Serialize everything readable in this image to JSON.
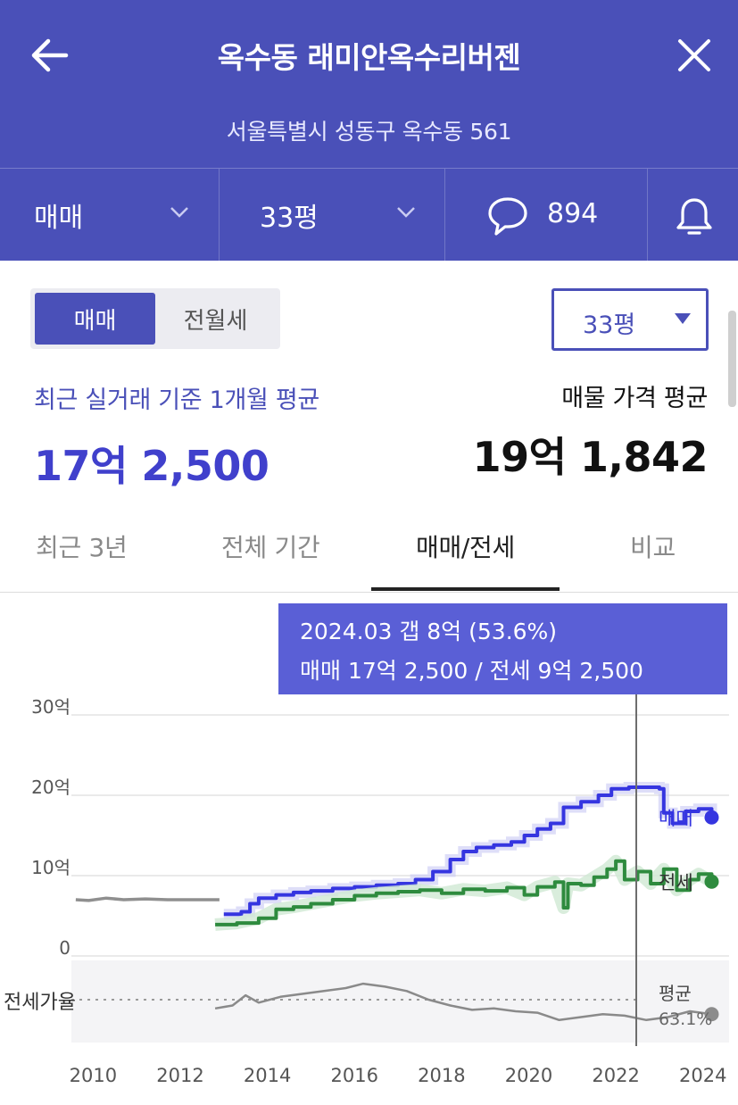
{
  "header": {
    "title": "옥수동 래미안옥수리버젠",
    "address": "서울특별시 성동구 옥수동 561",
    "filters": {
      "trade_type": "매매",
      "size": "33평",
      "comment_count": "894"
    }
  },
  "summary": {
    "toggle": {
      "active": "매매",
      "inactive": "전월세"
    },
    "size_select": "33평",
    "recent_label": "최근 실거래 기준 1개월 평균",
    "recent_value": "17억 2,500",
    "listing_label": "매물 가격 평균",
    "listing_value": "19억 1,842"
  },
  "tabs": [
    "최근 3년",
    "전체 기간",
    "매매/전세",
    "비교"
  ],
  "active_tab": "매매/전세",
  "colors": {
    "header_bg": "#4a50b8",
    "sale": "#3535e0",
    "jeonse": "#2e8b3e",
    "ratio": "#8a8a8a",
    "tooltip_bg": "#5a5fd6"
  },
  "tooltip": {
    "line1": "2024.03  갭 8억 (53.6%)",
    "line2": "매매 17억 2,500 / 전세 9억 2,500"
  },
  "chart_data": {
    "type": "line",
    "x_ticks": [
      "2010",
      "2012",
      "2014",
      "2016",
      "2018",
      "2020",
      "2022",
      "2024"
    ],
    "y_ticks": [
      "0",
      "10억",
      "20억",
      "30억"
    ],
    "ylim": [
      0,
      30
    ],
    "xlim": [
      2009.5,
      2024.6
    ],
    "grid": true,
    "series": [
      {
        "name": "매매",
        "key": "sale",
        "points": [
          [
            2009.6,
            7.0
          ],
          [
            2009.9,
            6.9
          ],
          [
            2010.3,
            7.2
          ],
          [
            2010.7,
            7.0
          ],
          [
            2011.2,
            7.1
          ],
          [
            2011.7,
            7.0
          ],
          [
            2012.3,
            7.0
          ],
          [
            2012.9,
            7.0
          ],
          [
            2013.0,
            5.2
          ],
          [
            2013.4,
            5.5
          ],
          [
            2013.6,
            6.5
          ],
          [
            2013.8,
            7.2
          ],
          [
            2014.2,
            7.6
          ],
          [
            2014.6,
            7.9
          ],
          [
            2015.0,
            8.1
          ],
          [
            2015.5,
            8.4
          ],
          [
            2016.0,
            8.6
          ],
          [
            2016.5,
            8.8
          ],
          [
            2017.0,
            9.0
          ],
          [
            2017.4,
            9.5
          ],
          [
            2017.8,
            10.5
          ],
          [
            2018.2,
            12.0
          ],
          [
            2018.5,
            13.0
          ],
          [
            2018.8,
            13.5
          ],
          [
            2019.2,
            13.8
          ],
          [
            2019.6,
            14.2
          ],
          [
            2019.9,
            15.0
          ],
          [
            2020.2,
            15.8
          ],
          [
            2020.5,
            16.5
          ],
          [
            2020.8,
            18.5
          ],
          [
            2021.2,
            19.2
          ],
          [
            2021.6,
            20.0
          ],
          [
            2021.9,
            20.8
          ],
          [
            2022.3,
            21.0
          ],
          [
            2022.7,
            21.0
          ],
          [
            2023.0,
            20.8
          ],
          [
            2023.1,
            17.8
          ],
          [
            2023.3,
            16.5
          ],
          [
            2023.6,
            18.0
          ],
          [
            2023.9,
            18.3
          ],
          [
            2024.2,
            17.25
          ]
        ]
      },
      {
        "name": "전세",
        "key": "jeonse",
        "points": [
          [
            2012.8,
            3.9
          ],
          [
            2013.3,
            4.1
          ],
          [
            2013.8,
            4.7
          ],
          [
            2014.2,
            5.8
          ],
          [
            2014.6,
            6.1
          ],
          [
            2015.0,
            6.5
          ],
          [
            2015.5,
            7.0
          ],
          [
            2016.0,
            7.5
          ],
          [
            2016.5,
            7.8
          ],
          [
            2017.0,
            8.0
          ],
          [
            2017.5,
            8.2
          ],
          [
            2018.0,
            7.8
          ],
          [
            2018.5,
            8.3
          ],
          [
            2019.0,
            8.1
          ],
          [
            2019.5,
            8.5
          ],
          [
            2019.9,
            7.6
          ],
          [
            2020.2,
            8.6
          ],
          [
            2020.6,
            9.2
          ],
          [
            2020.8,
            6.0
          ],
          [
            2020.9,
            9.0
          ],
          [
            2021.2,
            8.8
          ],
          [
            2021.5,
            9.8
          ],
          [
            2021.8,
            10.8
          ],
          [
            2022.0,
            11.8
          ],
          [
            2022.2,
            9.5
          ],
          [
            2022.5,
            10.5
          ],
          [
            2022.8,
            9.0
          ],
          [
            2023.1,
            10.8
          ],
          [
            2023.4,
            8.2
          ],
          [
            2023.7,
            9.5
          ],
          [
            2023.9,
            10.2
          ],
          [
            2024.2,
            9.25
          ]
        ]
      },
      {
        "name": "전세가율",
        "key": "ratio",
        "average_label": "평균",
        "average_value": "63.1%",
        "points": [
          [
            2012.8,
            58
          ],
          [
            2013.2,
            60
          ],
          [
            2013.5,
            67
          ],
          [
            2013.8,
            62
          ],
          [
            2014.3,
            66
          ],
          [
            2014.8,
            68
          ],
          [
            2015.3,
            70
          ],
          [
            2015.8,
            72
          ],
          [
            2016.2,
            75
          ],
          [
            2016.7,
            73
          ],
          [
            2017.2,
            70
          ],
          [
            2017.7,
            64
          ],
          [
            2018.2,
            60
          ],
          [
            2018.7,
            57
          ],
          [
            2019.2,
            58
          ],
          [
            2019.7,
            56
          ],
          [
            2020.2,
            55
          ],
          [
            2020.7,
            50
          ],
          [
            2021.2,
            52
          ],
          [
            2021.7,
            54
          ],
          [
            2022.2,
            53
          ],
          [
            2022.7,
            50
          ],
          [
            2023.2,
            52
          ],
          [
            2023.7,
            56
          ],
          [
            2024.2,
            54
          ]
        ]
      }
    ],
    "legend": {
      "sale": "매매",
      "jeonse": "전세",
      "ratio": "전세가율"
    }
  }
}
